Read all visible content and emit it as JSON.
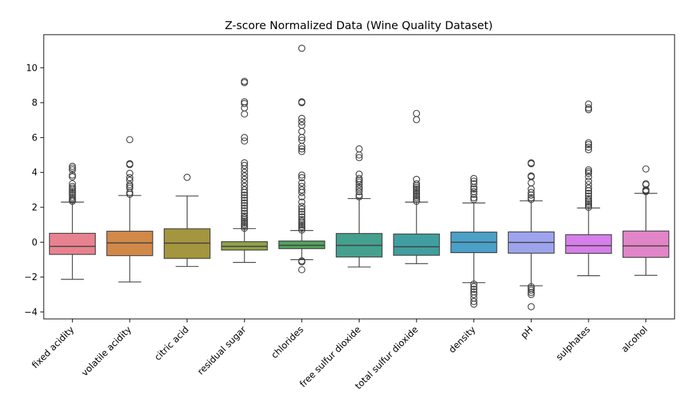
{
  "chart_data": {
    "type": "boxplot",
    "title": "Z-score Normalized Data (Wine Quality Dataset)",
    "xlabel": "",
    "ylabel": "",
    "ylim": [
      -4.4,
      11.9
    ],
    "yticks": [
      -4,
      -2,
      0,
      2,
      4,
      6,
      8,
      10
    ],
    "ytick_labels": [
      "−4",
      "−2",
      "0",
      "2",
      "4",
      "6",
      "8",
      "10"
    ],
    "grid": false,
    "legend": false,
    "categories": [
      "fixed acidity",
      "volatile acidity",
      "citric acid",
      "residual sugar",
      "chlorides",
      "free sulfur dioxide",
      "total sulfur dioxide",
      "density",
      "pH",
      "sulphates",
      "alcohol"
    ],
    "colors": [
      "#e8828f",
      "#d1894a",
      "#a4953f",
      "#8fa14b",
      "#52a15e",
      "#45a08e",
      "#419e9f",
      "#4aa0c6",
      "#9ea3ee",
      "#d67fe9",
      "#e285c8"
    ],
    "boxes": [
      {
        "name": "fixed acidity",
        "whislo": -2.13,
        "q1": -0.7,
        "med": -0.24,
        "q3": 0.51,
        "whishi": 2.3,
        "fliers": [
          2.35,
          2.42,
          2.5,
          2.58,
          2.7,
          2.8,
          2.9,
          3.0,
          3.1,
          3.2,
          3.35,
          3.75,
          3.85,
          4.15,
          4.25,
          4.35
        ]
      },
      {
        "name": "volatile acidity",
        "whislo": -2.28,
        "q1": -0.77,
        "med": -0.04,
        "q3": 0.63,
        "whishi": 2.68,
        "fliers": [
          2.75,
          2.85,
          3.1,
          3.2,
          3.3,
          3.55,
          3.7,
          3.95,
          4.45,
          4.5,
          5.88
        ]
      },
      {
        "name": "citric acid",
        "whislo": -1.39,
        "q1": -0.93,
        "med": -0.05,
        "q3": 0.77,
        "whishi": 2.65,
        "fliers": [
          3.72
        ]
      },
      {
        "name": "residual sugar",
        "whislo": -1.16,
        "q1": -0.45,
        "med": -0.24,
        "q3": 0.03,
        "whishi": 0.78,
        "fliers": [
          0.8,
          0.9,
          1.0,
          1.1,
          1.2,
          1.3,
          1.4,
          1.5,
          1.65,
          1.8,
          1.95,
          2.1,
          2.25,
          2.4,
          2.55,
          2.7,
          2.85,
          3.0,
          3.2,
          3.4,
          3.6,
          3.8,
          4.0,
          4.2,
          4.4,
          4.55,
          5.8,
          6.0,
          7.35,
          7.7,
          7.95,
          8.05,
          9.15,
          9.22
        ]
      },
      {
        "name": "chlorides",
        "whislo": -1.0,
        "q1": -0.37,
        "med": -0.18,
        "q3": 0.07,
        "whishi": 0.67,
        "fliers": [
          0.7,
          0.8,
          0.9,
          1.0,
          1.1,
          1.2,
          1.3,
          1.45,
          1.6,
          1.75,
          1.9,
          2.05,
          2.3,
          2.6,
          2.85,
          3.0,
          3.2,
          3.4,
          3.7,
          3.85,
          5.2,
          5.35,
          5.5,
          5.85,
          6.0,
          6.35,
          6.7,
          6.9,
          7.1,
          8.0,
          8.05,
          11.12,
          -1.07,
          -1.13,
          -1.58
        ]
      },
      {
        "name": "free sulfur dioxide",
        "whislo": -1.42,
        "q1": -0.85,
        "med": -0.18,
        "q3": 0.5,
        "whishi": 2.5,
        "fliers": [
          2.6,
          2.7,
          2.9,
          3.05,
          3.15,
          3.3,
          3.45,
          3.55,
          3.65,
          3.9,
          4.85,
          5.0,
          5.35
        ]
      },
      {
        "name": "total sulfur dioxide",
        "whislo": -1.23,
        "q1": -0.75,
        "med": -0.26,
        "q3": 0.47,
        "whishi": 2.3,
        "fliers": [
          2.35,
          2.45,
          2.55,
          2.65,
          2.75,
          2.85,
          2.95,
          3.05,
          3.15,
          3.25,
          3.35,
          3.6,
          7.03,
          7.38
        ]
      },
      {
        "name": "density",
        "whislo": -2.32,
        "q1": -0.6,
        "med": 0.0,
        "q3": 0.58,
        "whishi": 2.25,
        "fliers": [
          2.45,
          2.55,
          2.75,
          2.9,
          3.05,
          3.15,
          3.35,
          3.5,
          3.65,
          -2.4,
          -2.55,
          -2.7,
          -2.85,
          -3.0,
          -3.2,
          -3.4,
          -3.55
        ]
      },
      {
        "name": "pH",
        "whislo": -2.5,
        "q1": -0.63,
        "med": -0.01,
        "q3": 0.59,
        "whishi": 2.37,
        "fliers": [
          2.45,
          2.55,
          2.7,
          2.85,
          3.05,
          3.4,
          3.75,
          3.8,
          4.5,
          4.55,
          -2.55,
          -2.65,
          -2.75,
          -2.88,
          -3.0,
          -3.7
        ]
      },
      {
        "name": "sulphates",
        "whislo": -1.92,
        "q1": -0.64,
        "med": -0.2,
        "q3": 0.43,
        "whishi": 1.96,
        "fliers": [
          2.0,
          2.1,
          2.2,
          2.3,
          2.4,
          2.5,
          2.65,
          2.8,
          2.95,
          3.1,
          3.3,
          3.5,
          3.75,
          3.95,
          4.05,
          4.15,
          5.3,
          5.45,
          5.6,
          5.7,
          7.6,
          7.7,
          7.92
        ]
      },
      {
        "name": "alcohol",
        "whislo": -1.9,
        "q1": -0.87,
        "med": -0.21,
        "q3": 0.64,
        "whishi": 2.8,
        "fliers": [
          2.9,
          2.95,
          3.0,
          3.3,
          3.35,
          4.2
        ]
      }
    ]
  }
}
